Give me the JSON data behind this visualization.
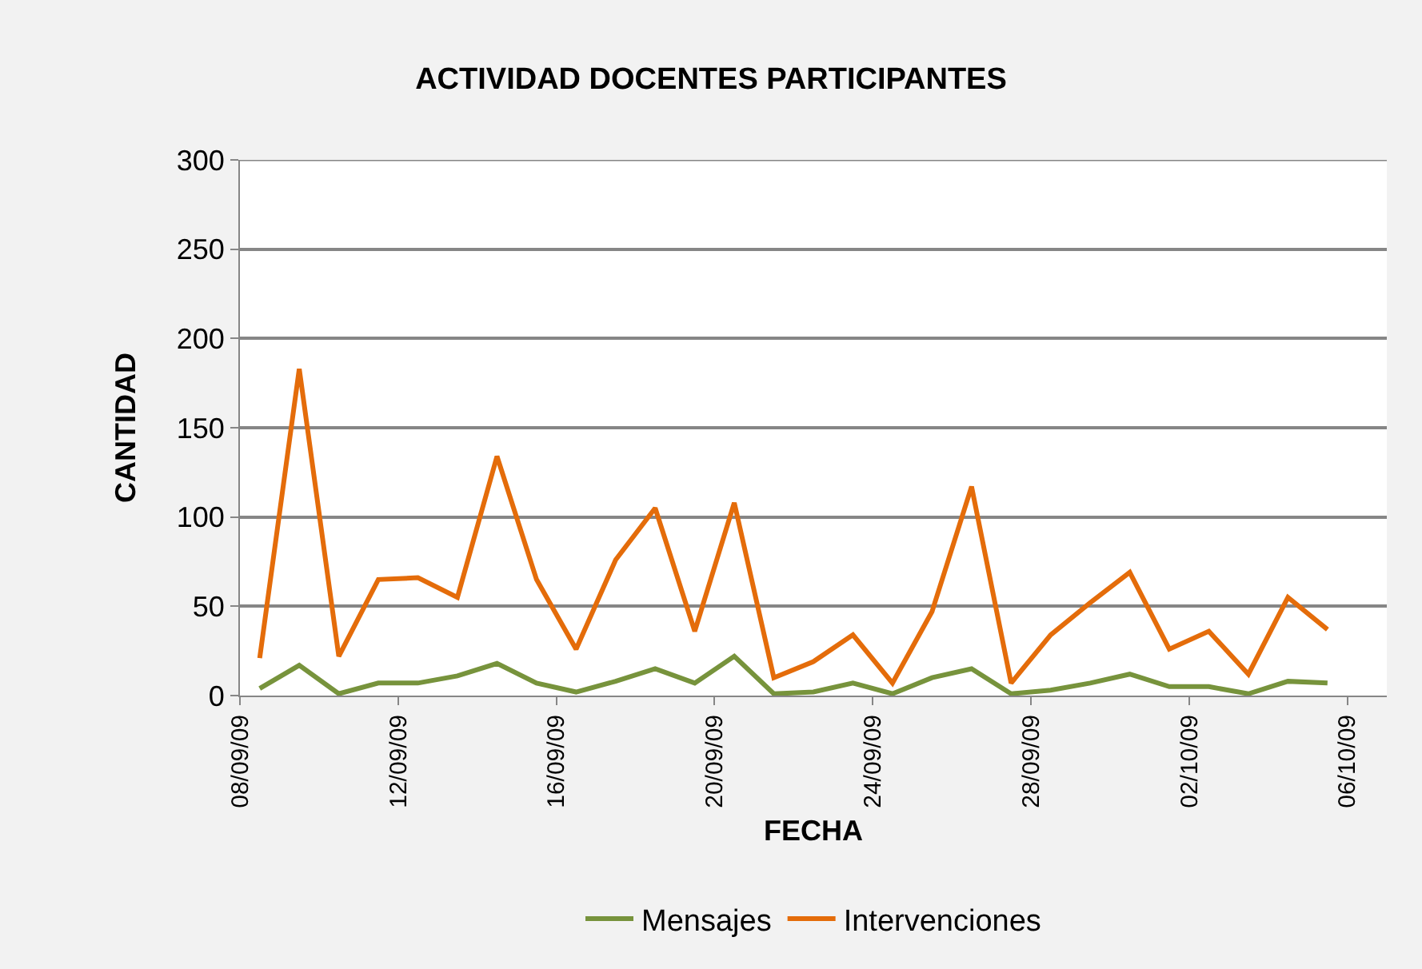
{
  "chart_data": {
    "type": "line",
    "title": "ACTIVIDAD DOCENTES PARTICIPANTES",
    "xlabel": "FECHA",
    "ylabel": "CANTIDAD",
    "x": [
      "--09-08T12:00",
      "--09-09T12:00",
      "--09-10T12:00",
      "--09-11T12:00",
      "--09-12T12:00",
      "--09-13T12:00",
      "--09-14T12:00",
      "--09-15T12:00",
      "--09-16T12:00",
      "--09-17T12:00",
      "--09-18T12:00",
      "--09-19T12:00",
      "--09-20T12:00",
      "--09-21T12:00",
      "--09-22T12:00",
      "--09-23T12:00",
      "--09-24T12:00",
      "--09-25T12:00",
      "--09-26T12:00",
      "--09-27T12:00",
      "--09-28T12:00",
      "--09-29T12:00",
      "--09-30T12:00",
      "--10-01T12:00",
      "--10-02T12:00",
      "--10-03T12:00",
      "--10-04T12:00",
      "--10-05T12:00"
    ],
    "series": [
      {
        "name": "Mensajes",
        "color": "#77933c",
        "values": [
          4,
          17,
          1,
          7,
          7,
          11,
          18,
          7,
          2,
          8,
          15,
          7,
          22,
          1,
          2,
          7,
          1,
          10,
          15,
          1,
          3,
          7,
          12,
          5,
          5,
          1,
          8,
          7
        ]
      },
      {
        "name": "Intervenciones",
        "color": "#e46c0a",
        "values": [
          21,
          183,
          22,
          65,
          66,
          55,
          134,
          65,
          26,
          76,
          105,
          36,
          108,
          10,
          19,
          34,
          7,
          47,
          117,
          7,
          34,
          52,
          69,
          26,
          36,
          12,
          55,
          37
        ]
      }
    ],
    "xlim": [
      "--09-08",
      "--10-07"
    ],
    "xticks": [
      {
        "value": "--09-08",
        "label": "08/09/09"
      },
      {
        "value": "--09-12",
        "label": "12/09/09"
      },
      {
        "value": "--09-16",
        "label": "16/09/09"
      },
      {
        "value": "--09-20",
        "label": "20/09/09"
      },
      {
        "value": "--09-24",
        "label": "24/09/09"
      },
      {
        "value": "--09-28",
        "label": "28/09/09"
      },
      {
        "value": "--10-02",
        "label": "02/10/09"
      },
      {
        "value": "--10-06",
        "label": "06/10/09"
      }
    ],
    "ylim": [
      0,
      300
    ],
    "yticks": [
      0,
      50,
      100,
      150,
      200,
      250,
      300
    ],
    "grid": "y",
    "legend": "bottom",
    "marker": "none",
    "line_style": "solid"
  }
}
